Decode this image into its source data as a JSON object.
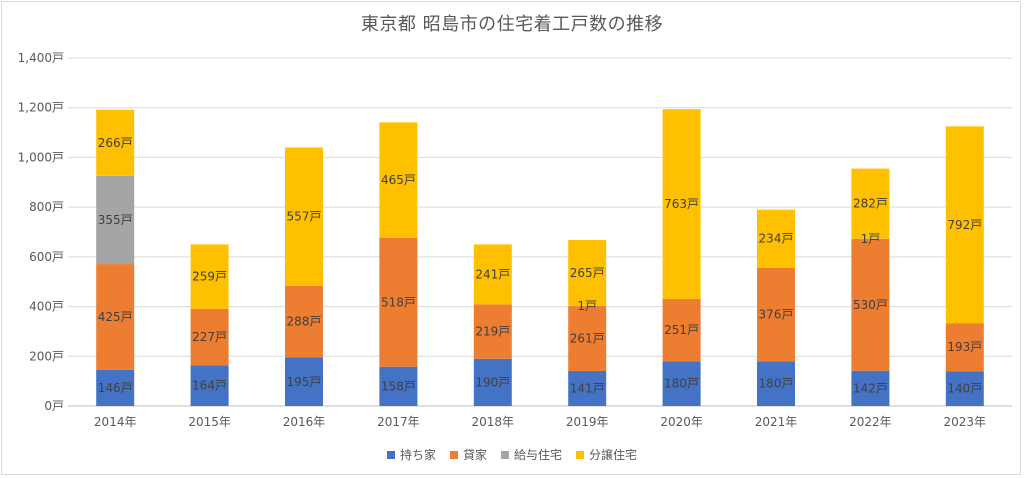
{
  "chart_data": {
    "type": "bar",
    "stacked": true,
    "title": "東京都 昭島市の住宅着工戸数の推移",
    "xlabel": "",
    "ylabel": "",
    "ylim": [
      0,
      1400
    ],
    "yticks": [
      "0戸",
      "200戸",
      "400戸",
      "600戸",
      "800戸",
      "1,000戸",
      "1,200戸",
      "1,400戸"
    ],
    "categories": [
      "2014年",
      "2015年",
      "2016年",
      "2017年",
      "2018年",
      "2019年",
      "2020年",
      "2021年",
      "2022年",
      "2023年"
    ],
    "series": [
      {
        "name": "持ち家",
        "color": "#4472c4",
        "values": [
          146,
          164,
          195,
          158,
          190,
          141,
          180,
          180,
          142,
          140
        ]
      },
      {
        "name": "貸家",
        "color": "#ed7d31",
        "values": [
          425,
          227,
          288,
          518,
          219,
          261,
          251,
          376,
          530,
          193
        ]
      },
      {
        "name": "給与住宅",
        "color": "#a5a5a5",
        "values": [
          355,
          0,
          0,
          0,
          0,
          1,
          0,
          0,
          1,
          0
        ]
      },
      {
        "name": "分譲住宅",
        "color": "#ffc000",
        "values": [
          266,
          259,
          557,
          465,
          241,
          265,
          763,
          234,
          282,
          792
        ]
      }
    ],
    "unit_suffix": "戸",
    "grid": true,
    "legend_position": "bottom"
  }
}
